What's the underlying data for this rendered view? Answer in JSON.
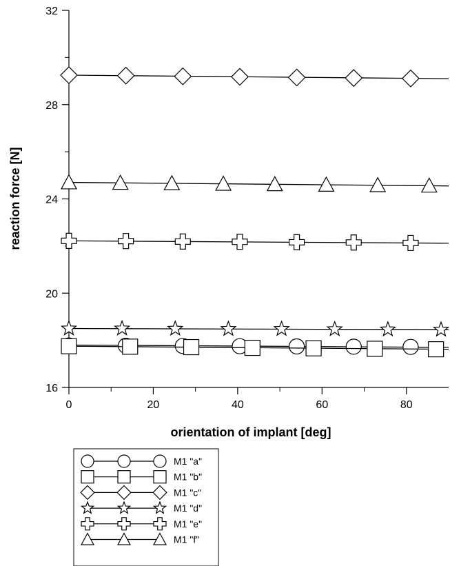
{
  "chart_data": {
    "type": "line",
    "xlabel": "orientation of implant [deg]",
    "ylabel": "reaction force [N]",
    "xlim": [
      0,
      90
    ],
    "ylim": [
      16,
      32
    ],
    "x_ticks": [
      "0",
      "20",
      "40",
      "60",
      "80"
    ],
    "x_tick_values": [
      0,
      20,
      40,
      60,
      80
    ],
    "y_ticks": [
      "16",
      "20",
      "24",
      "28",
      "32"
    ],
    "y_tick_values": [
      16,
      20,
      24,
      28,
      32
    ],
    "grid": false,
    "legend_position": "below plot, left",
    "series": [
      {
        "name": "M1 \"a\"",
        "marker": "circle",
        "x": [
          0,
          90
        ],
        "y": [
          17.8,
          17.7
        ],
        "marker_x": [
          0,
          13.5,
          27,
          40.5,
          54,
          67.5,
          81
        ],
        "marker_y": [
          17.78,
          17.77,
          17.76,
          17.75,
          17.74,
          17.73,
          17.72
        ]
      },
      {
        "name": "M1 \"b\"",
        "marker": "square",
        "x": [
          0,
          90
        ],
        "y": [
          17.75,
          17.62
        ],
        "marker_x": [
          0,
          14.5,
          29,
          43.5,
          58,
          72.5,
          87
        ],
        "marker_y": [
          17.75,
          17.73,
          17.71,
          17.68,
          17.66,
          17.64,
          17.62
        ]
      },
      {
        "name": "M1 \"c\"",
        "marker": "diamond",
        "x": [
          0,
          90
        ],
        "y": [
          29.25,
          29.1
        ],
        "marker_x": [
          0,
          13.5,
          27,
          40.5,
          54,
          67.5,
          81
        ],
        "marker_y": [
          29.25,
          29.23,
          29.2,
          29.18,
          29.15,
          29.13,
          29.11
        ]
      },
      {
        "name": "M1 \"d\"",
        "marker": "star",
        "x": [
          0,
          90
        ],
        "y": [
          18.5,
          18.45
        ],
        "marker_x": [
          0,
          12.6,
          25.2,
          37.8,
          50.4,
          63,
          75.6,
          88.2
        ],
        "marker_y": [
          18.5,
          18.5,
          18.49,
          18.48,
          18.48,
          18.47,
          18.46,
          18.45
        ]
      },
      {
        "name": "M1 \"e\"",
        "marker": "cross",
        "x": [
          0,
          90
        ],
        "y": [
          22.22,
          22.12
        ],
        "marker_x": [
          0,
          13.5,
          27,
          40.5,
          54,
          67.5,
          81
        ],
        "marker_y": [
          22.22,
          22.21,
          22.19,
          22.18,
          22.16,
          22.15,
          22.13
        ]
      },
      {
        "name": "M1 \"f\"",
        "marker": "triangle",
        "x": [
          0,
          90
        ],
        "y": [
          24.7,
          24.55
        ],
        "marker_x": [
          0,
          12.2,
          24.4,
          36.6,
          48.8,
          61,
          73.2,
          85.4
        ],
        "marker_y": [
          24.7,
          24.68,
          24.66,
          24.64,
          24.62,
          24.6,
          24.58,
          24.56
        ]
      }
    ]
  }
}
